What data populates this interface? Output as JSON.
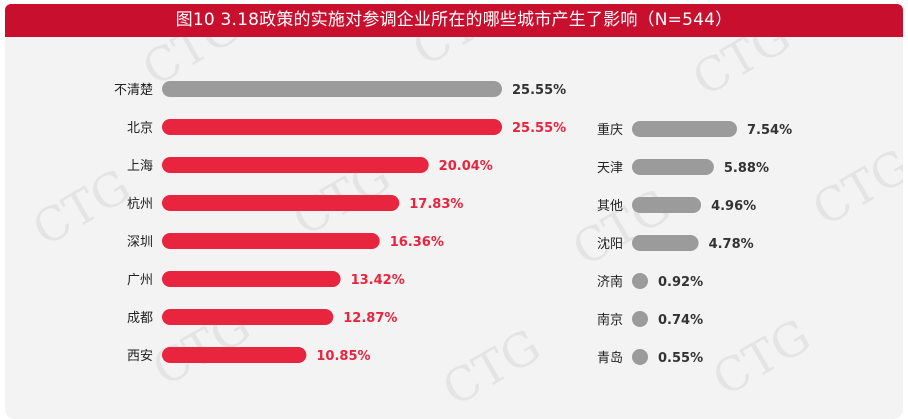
{
  "title": "图10 3.18政策的实施对参调企业所在的哪些城市产生了影响（N=544）",
  "watermark": "CTG",
  "colors": {
    "red": "#e8243e",
    "gray": "#9b9b9b",
    "banner": "#c8102e",
    "label_gray": "#333333"
  },
  "chart_data": [
    {
      "type": "bar",
      "orientation": "horizontal",
      "categories": [
        "不清楚",
        "北京",
        "上海",
        "杭州",
        "深圳",
        "广州",
        "成都",
        "西安"
      ],
      "values": [
        25.55,
        25.55,
        20.04,
        17.83,
        16.36,
        13.42,
        12.87,
        10.85
      ],
      "value_labels": [
        "25.55%",
        "25.55%",
        "20.04%",
        "17.83%",
        "16.36%",
        "13.42%",
        "12.87%",
        "10.85%"
      ],
      "bar_colors": [
        "gray",
        "red",
        "red",
        "red",
        "red",
        "red",
        "red",
        "red"
      ],
      "unit": "%",
      "xlim": [
        0,
        25.55
      ]
    },
    {
      "type": "bar",
      "orientation": "horizontal",
      "categories": [
        "重庆",
        "天津",
        "其他",
        "沈阳",
        "济南",
        "南京",
        "青岛"
      ],
      "values": [
        7.54,
        5.88,
        4.96,
        4.78,
        0.92,
        0.74,
        0.55
      ],
      "value_labels": [
        "7.54%",
        "5.88%",
        "4.96%",
        "4.78%",
        "0.92%",
        "0.74%",
        "0.55%"
      ],
      "bar_colors": [
        "gray",
        "gray",
        "gray",
        "gray",
        "gray",
        "gray",
        "gray"
      ],
      "unit": "%",
      "xlim": [
        0,
        7.54
      ]
    }
  ]
}
